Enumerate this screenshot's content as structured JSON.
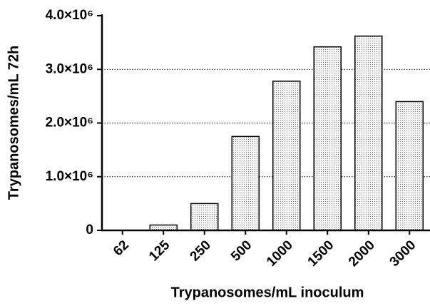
{
  "chart_data": {
    "type": "bar",
    "x_label": "Trypanosomes/mL inoculum",
    "y_label": "Trypanosomes/mL 72h",
    "categories": [
      "62",
      "125",
      "250",
      "500",
      "1000",
      "1500",
      "2000",
      "3000"
    ],
    "values": [
      0,
      100000,
      500000,
      1750000,
      2780000,
      3420000,
      3620000,
      2400000
    ],
    "color": "#d9d9d9",
    "ylim": [
      0,
      4000000
    ],
    "yticks": [
      0,
      {
        "value": 1000000,
        "label": "1.0×10⁶"
      },
      {
        "value": 2000000,
        "label": "2.0×10⁶"
      },
      {
        "value": 3000000,
        "label": "3.0×10⁶"
      },
      {
        "value": 4000000,
        "label": "4.0×10⁶"
      }
    ],
    "grid": true
  }
}
